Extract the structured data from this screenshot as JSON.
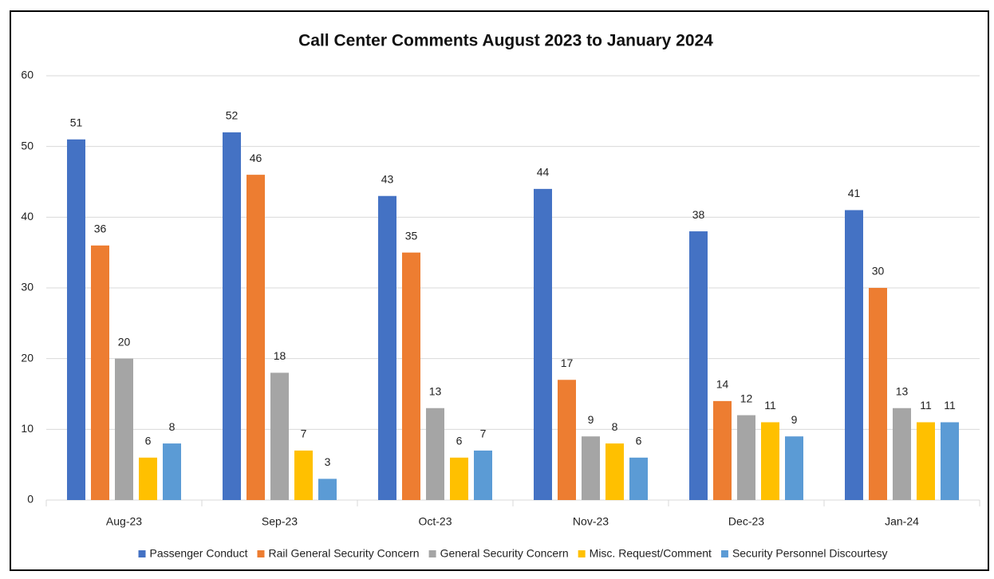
{
  "chart_data": {
    "type": "bar",
    "title": "Call Center Comments August 2023 to January 2024",
    "categories": [
      "Aug-23",
      "Sep-23",
      "Oct-23",
      "Nov-23",
      "Dec-23",
      "Jan-24"
    ],
    "series": [
      {
        "name": "Passenger Conduct",
        "color": "#4472c4",
        "values": [
          51,
          52,
          43,
          44,
          38,
          41
        ]
      },
      {
        "name": "Rail General Security Concern",
        "color": "#ed7d31",
        "values": [
          36,
          46,
          35,
          17,
          14,
          30
        ]
      },
      {
        "name": "General Security Concern",
        "color": "#a5a5a5",
        "values": [
          20,
          18,
          13,
          9,
          12,
          13
        ]
      },
      {
        "name": "Misc. Request/Comment",
        "color": "#ffc000",
        "values": [
          6,
          7,
          6,
          8,
          11,
          11
        ]
      },
      {
        "name": "Security Personnel Discourtesy",
        "color": "#5b9bd5",
        "values": [
          8,
          3,
          7,
          6,
          9,
          11
        ]
      }
    ],
    "ylim": [
      0,
      60
    ],
    "yticks": [
      0,
      10,
      20,
      30,
      40,
      50,
      60
    ],
    "grid": true,
    "legend": "bottom"
  }
}
